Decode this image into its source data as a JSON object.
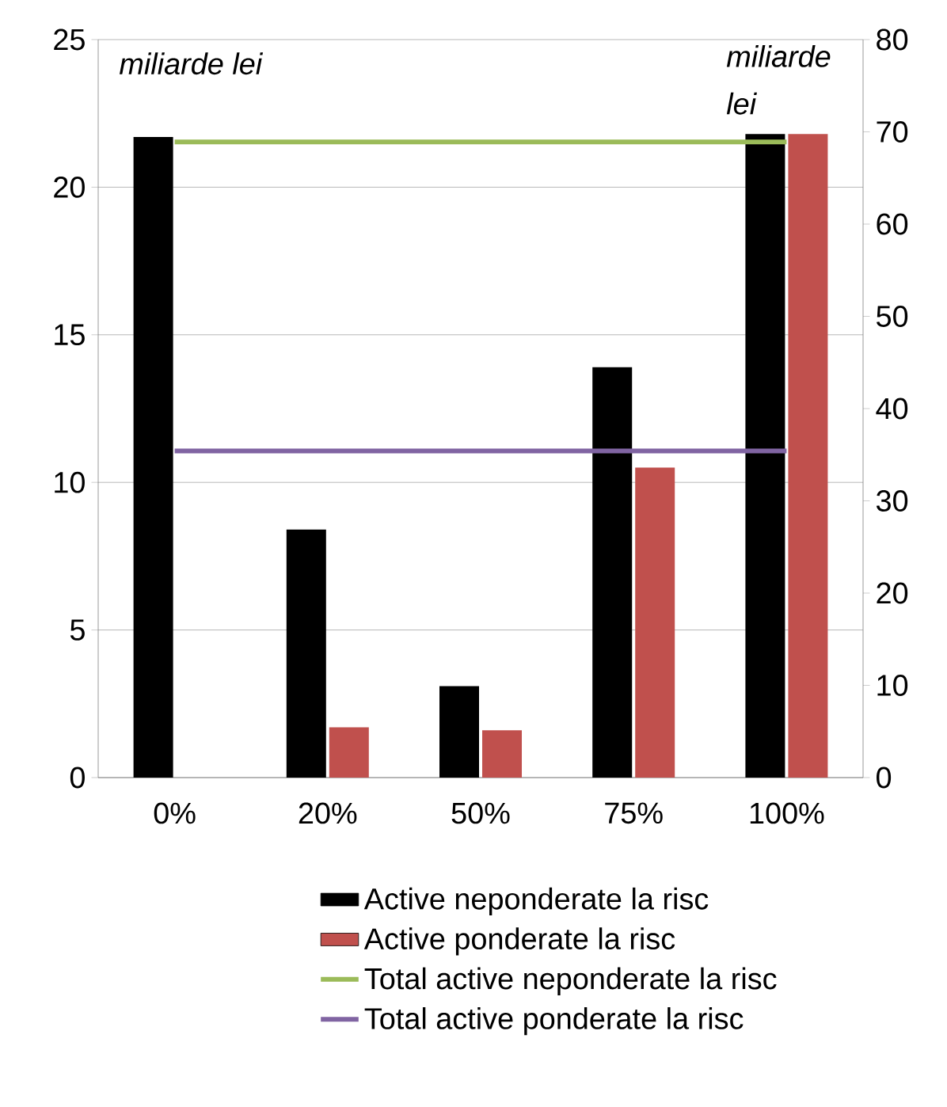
{
  "chart_data": {
    "type": "bar",
    "categories": [
      "0%",
      "20%",
      "50%",
      "75%",
      "100%"
    ],
    "series": [
      {
        "name": "Active neponderate la risc",
        "color": "#000000",
        "values": [
          21.7,
          8.4,
          3.1,
          13.9,
          21.8
        ]
      },
      {
        "name": "Active ponderate la risc",
        "color": "#c0504d",
        "values": [
          0,
          1.7,
          1.6,
          10.5,
          21.8
        ]
      },
      {
        "name": "Total active neponderate la risc",
        "type": "line",
        "axis": "y2",
        "color": "#9bbb59",
        "values": [
          68.9,
          68.9,
          68.9,
          68.9,
          68.9
        ]
      },
      {
        "name": "Total active ponderate la risc",
        "type": "line",
        "axis": "y2",
        "color": "#8064a2",
        "values": [
          35.4,
          35.4,
          35.4,
          35.4,
          35.4
        ]
      }
    ],
    "ylim": [
      0,
      25
    ],
    "yticks": [
      0,
      5,
      10,
      15,
      20,
      25
    ],
    "y2lim": [
      0,
      80
    ],
    "y2ticks": [
      0,
      10,
      20,
      30,
      40,
      50,
      60,
      70,
      80
    ],
    "grid": "y",
    "legend": "bottom",
    "annotations": [
      "miliarde lei",
      "miliarde lei"
    ]
  }
}
